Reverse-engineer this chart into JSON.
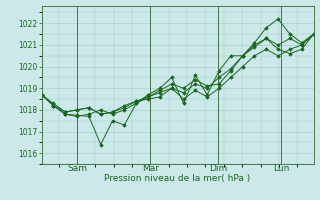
{
  "title": "",
  "xlabel": "Pression niveau de la mer( hPa )",
  "ylabel": "",
  "bg_color": "#cce8e8",
  "grid_color": "#99cccc",
  "line_color": "#1a6620",
  "spine_color": "#336633",
  "ylim": [
    1015.5,
    1022.8
  ],
  "yticks": [
    1016,
    1017,
    1018,
    1019,
    1020,
    1021,
    1022
  ],
  "day_labels": [
    "Sam",
    "Mar",
    "Dim",
    "Lun"
  ],
  "day_positions": [
    0.13,
    0.4,
    0.65,
    0.88
  ],
  "series": [
    [
      1018.7,
      1018.2,
      1017.8,
      1017.75,
      1017.7,
      1016.4,
      1017.5,
      1017.3,
      1018.3,
      1018.7,
      1019.0,
      1019.5,
      1018.3,
      1019.6,
      1018.7,
      1019.8,
      1020.5,
      1020.5,
      1021.1,
      1021.8,
      1022.2,
      1021.5,
      1021.1,
      1021.5
    ],
    [
      1018.7,
      1018.2,
      1017.8,
      1017.7,
      1017.8,
      1018.0,
      1017.8,
      1018.0,
      1018.3,
      1018.6,
      1018.9,
      1019.2,
      1019.0,
      1019.4,
      1019.1,
      1019.2,
      1019.8,
      1020.5,
      1021.0,
      1021.3,
      1021.0,
      1021.3,
      1021.0,
      1021.5
    ],
    [
      1018.7,
      1018.3,
      1017.9,
      1018.0,
      1018.1,
      1017.8,
      1017.9,
      1018.1,
      1018.4,
      1018.5,
      1018.6,
      1019.0,
      1018.8,
      1019.2,
      1019.0,
      1019.5,
      1019.9,
      1020.5,
      1020.9,
      1021.3,
      1020.8,
      1020.6,
      1020.8,
      1021.5
    ],
    [
      1018.7,
      1018.2,
      1017.9,
      1018.0,
      1018.1,
      1017.8,
      1017.9,
      1018.2,
      1018.4,
      1018.6,
      1018.8,
      1019.0,
      1018.5,
      1018.9,
      1018.6,
      1019.0,
      1019.5,
      1020.0,
      1020.5,
      1020.8,
      1020.5,
      1020.8,
      1021.0,
      1021.5
    ]
  ]
}
